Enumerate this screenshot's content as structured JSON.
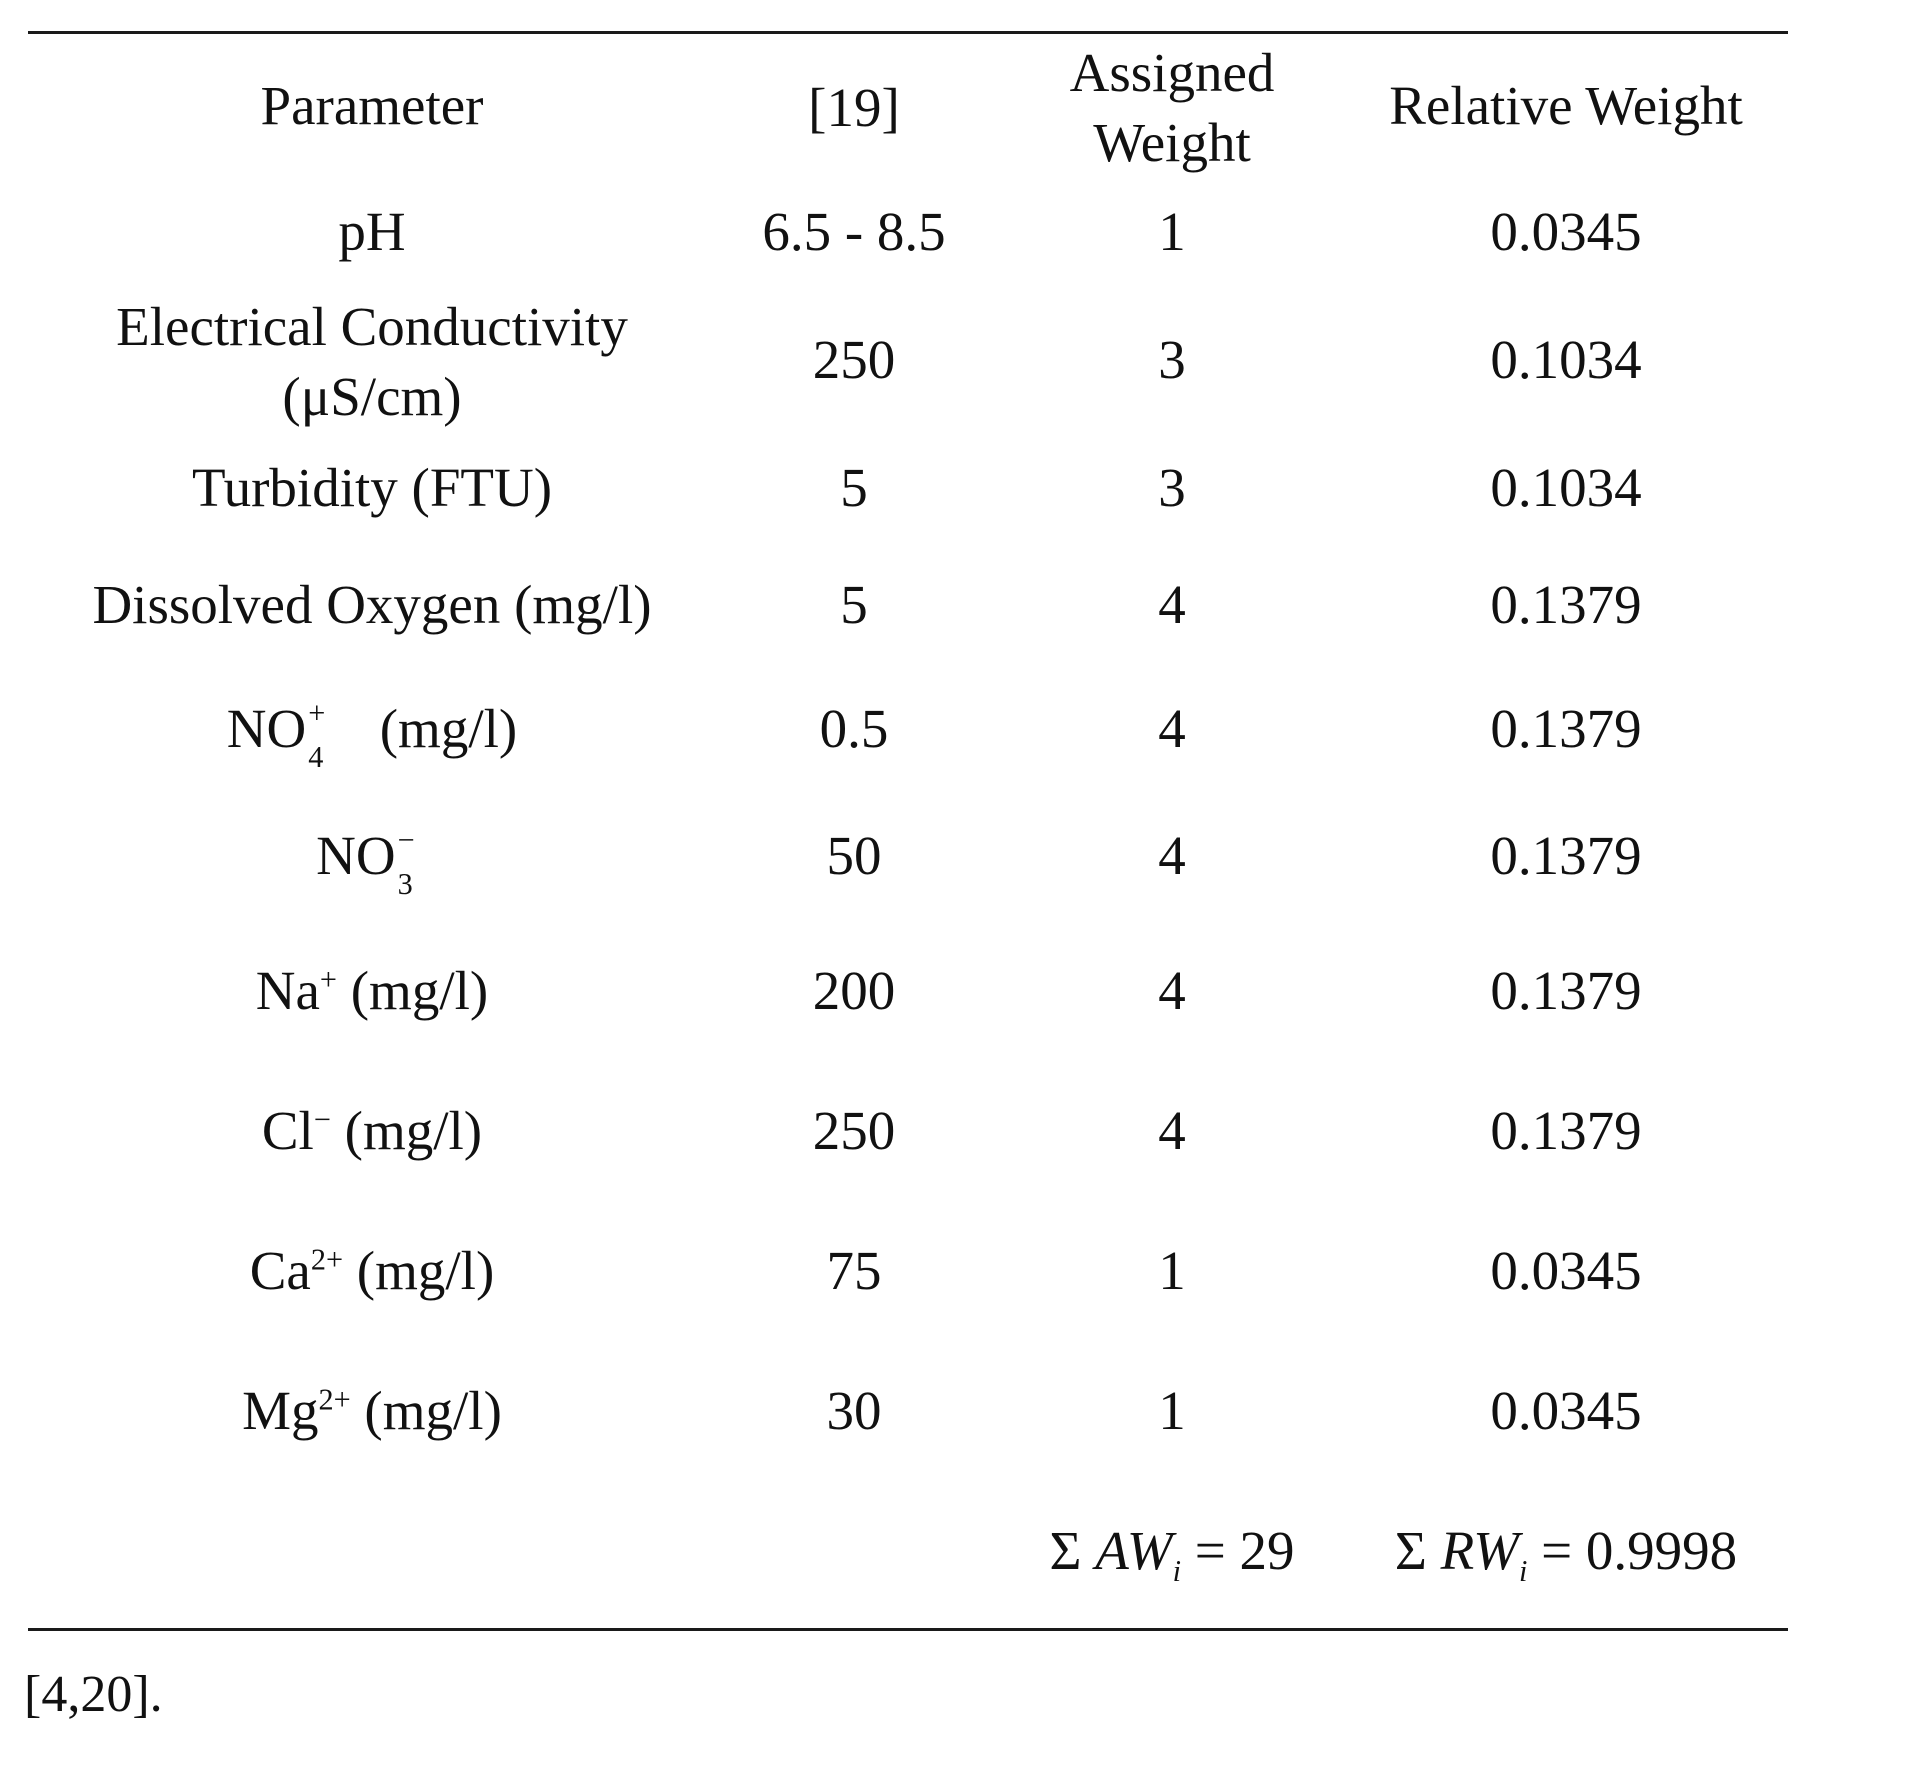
{
  "table": {
    "headers": {
      "parameter": "Parameter",
      "standard": "[19]",
      "assigned_weight_line1": "Assigned",
      "assigned_weight_line2": "Weight",
      "relative_weight": "Relative Weight"
    },
    "rows": [
      {
        "parameter": "pH",
        "standard": "6.5 - 8.5",
        "assigned_weight": "1",
        "relative_weight": "0.0345"
      },
      {
        "parameter_line1": "Electrical Conductivity",
        "parameter_line2": "(μS/cm)",
        "standard": "250",
        "assigned_weight": "3",
        "relative_weight": "0.1034"
      },
      {
        "parameter": "Turbidity (FTU)",
        "standard": "5",
        "assigned_weight": "3",
        "relative_weight": "0.1034"
      },
      {
        "parameter": "Dissolved Oxygen (mg/l)",
        "standard": "5",
        "assigned_weight": "4",
        "relative_weight": "0.1379"
      },
      {
        "parameter_base": "NO",
        "parameter_sup": "+",
        "parameter_sub": "4",
        "parameter_unit": "(mg/l)",
        "standard": "0.5",
        "assigned_weight": "4",
        "relative_weight": "0.1379"
      },
      {
        "parameter_base": "NO",
        "parameter_sup": "−",
        "parameter_sub": "3",
        "standard": "50",
        "assigned_weight": "4",
        "relative_weight": "0.1379"
      },
      {
        "parameter_base": "Na",
        "parameter_sup": "+",
        "parameter_unit": "(mg/l)",
        "standard": "200",
        "assigned_weight": "4",
        "relative_weight": "0.1379"
      },
      {
        "parameter_base": "Cl",
        "parameter_sup": "−",
        "parameter_unit": "(mg/l)",
        "standard": "250",
        "assigned_weight": "4",
        "relative_weight": "0.1379"
      },
      {
        "parameter_base": "Ca",
        "parameter_sup": "2+",
        "parameter_unit": "(mg/l)",
        "standard": "75",
        "assigned_weight": "1",
        "relative_weight": "0.0345"
      },
      {
        "parameter_base": "Mg",
        "parameter_sup": "2+",
        "parameter_unit": "(mg/l)",
        "standard": "30",
        "assigned_weight": "1",
        "relative_weight": "0.0345"
      }
    ],
    "totals": {
      "aw_sigma": "Σ",
      "aw_symbol": "AW",
      "aw_sub": "i",
      "aw_value": " = 29",
      "rw_sigma": "Σ",
      "rw_symbol": "RW",
      "rw_sub": "i",
      "rw_value": " = 0.9998"
    }
  },
  "footnote": "[4,20]."
}
